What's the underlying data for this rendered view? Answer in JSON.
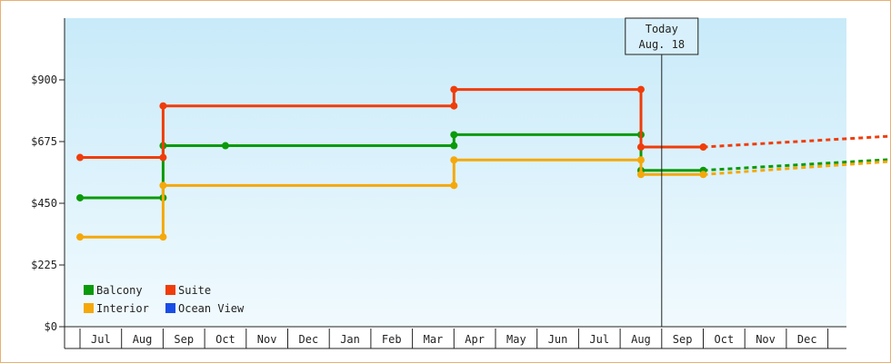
{
  "chart_data": {
    "type": "line",
    "step": true,
    "y_ticks": [
      "$0",
      "$225",
      "$450",
      "$675",
      "$900"
    ],
    "ylim": [
      0,
      1125
    ],
    "x_months": [
      "Jul",
      "Aug",
      "Sep",
      "Oct",
      "Nov",
      "Dec",
      "Jan",
      "Feb",
      "Mar",
      "Apr",
      "May",
      "Jun",
      "Jul",
      "Aug",
      "Sep",
      "Oct",
      "Nov",
      "Dec"
    ],
    "today_label": [
      "Today",
      "Aug. 18"
    ],
    "today_x": 13.5,
    "legend": [
      "Balcony",
      "Suite",
      "Interior",
      "Ocean View"
    ],
    "colors": {
      "Balcony": "#0a9a0a",
      "Suite": "#f03c0a",
      "Interior": "#f5a80a",
      "Ocean View": "#1a4de6"
    },
    "series": [
      {
        "name": "Balcony",
        "points": [
          [
            -0.5,
            470
          ],
          [
            1.5,
            470
          ],
          [
            1.5,
            660
          ],
          [
            3.0,
            660
          ],
          [
            8.5,
            660
          ],
          [
            8.5,
            700
          ],
          [
            13.0,
            700
          ],
          [
            13.0,
            570
          ],
          [
            14.5,
            570
          ]
        ],
        "markers": [
          [
            -0.5,
            470
          ],
          [
            1.5,
            470
          ],
          [
            1.5,
            660
          ],
          [
            3.0,
            660
          ],
          [
            8.5,
            660
          ],
          [
            8.5,
            700
          ],
          [
            13.0,
            700
          ],
          [
            13.0,
            570
          ],
          [
            14.5,
            570
          ]
        ],
        "projection": [
          [
            14.5,
            570
          ],
          [
            20.2,
            620
          ]
        ]
      },
      {
        "name": "Suite",
        "points": [
          [
            -0.5,
            617
          ],
          [
            1.5,
            617
          ],
          [
            1.5,
            805
          ],
          [
            8.5,
            805
          ],
          [
            8.5,
            865
          ],
          [
            13.0,
            865
          ],
          [
            13.0,
            655
          ],
          [
            14.5,
            655
          ]
        ],
        "markers": [
          [
            -0.5,
            617
          ],
          [
            1.5,
            617
          ],
          [
            1.5,
            805
          ],
          [
            8.5,
            805
          ],
          [
            8.5,
            865
          ],
          [
            13.0,
            865
          ],
          [
            13.0,
            655
          ],
          [
            14.5,
            655
          ]
        ],
        "projection": [
          [
            14.5,
            655
          ],
          [
            20.2,
            705
          ]
        ]
      },
      {
        "name": "Interior",
        "points": [
          [
            -0.5,
            327
          ],
          [
            1.5,
            327
          ],
          [
            1.5,
            515
          ],
          [
            8.5,
            515
          ],
          [
            8.5,
            608
          ],
          [
            13.0,
            608
          ],
          [
            13.0,
            555
          ],
          [
            14.5,
            555
          ]
        ],
        "markers": [
          [
            -0.5,
            327
          ],
          [
            1.5,
            327
          ],
          [
            1.5,
            515
          ],
          [
            8.5,
            515
          ],
          [
            8.5,
            608
          ],
          [
            13.0,
            608
          ],
          [
            13.0,
            555
          ],
          [
            14.5,
            555
          ]
        ],
        "projection": [
          [
            14.5,
            555
          ],
          [
            20.2,
            615
          ]
        ]
      },
      {
        "name": "Ocean View",
        "points": [],
        "markers": [],
        "projection": []
      }
    ]
  }
}
